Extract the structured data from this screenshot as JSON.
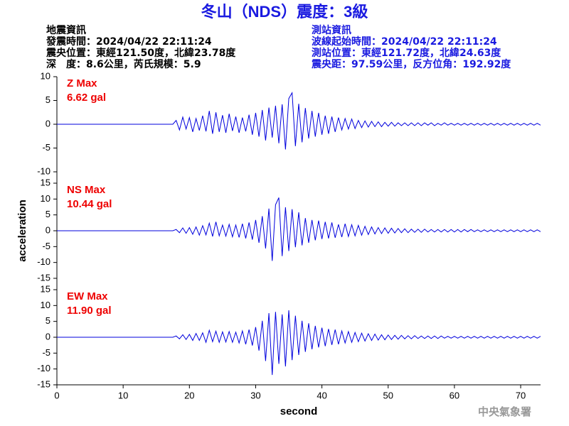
{
  "header": {
    "title": "冬山（NDS）震度：3級",
    "left_info": [
      "地震資訊",
      "發震時間：2024/04/22 22:11:24",
      "震央位置：東經121.50度，北緯23.78度",
      "深　度：8.6公里，芮氏規模：5.9"
    ],
    "right_info": [
      "測站資訊",
      "波線起始時間：2024/04/22 22:11:24",
      "測站位置：東經121.72度，北緯24.63度",
      "震央距：97.59公里，反方位角：192.92度"
    ]
  },
  "footer": {
    "watermark": "中央氣象署"
  },
  "chart_data": [
    {
      "type": "line",
      "annotation": "Z Max",
      "max_label": "6.62 gal",
      "color": "#0000dd",
      "annotation_color": "#ee0000",
      "xlim": [
        0,
        73
      ],
      "ylim": [
        -10,
        10
      ],
      "yticks": [
        -10,
        -5,
        0,
        5,
        10
      ],
      "x": [
        0,
        17.5,
        18,
        18.5,
        19,
        19.5,
        20,
        20.5,
        21,
        21.5,
        22,
        22.5,
        23,
        23.5,
        24,
        24.5,
        25,
        25.5,
        26,
        26.5,
        27,
        27.5,
        28,
        28.5,
        29,
        29.5,
        30,
        30.5,
        31,
        31.5,
        32,
        32.5,
        33,
        33.5,
        34,
        34.5,
        35,
        35.5,
        36,
        36.5,
        37,
        37.5,
        38,
        38.5,
        39,
        39.5,
        40,
        40.5,
        41,
        41.5,
        42,
        42.5,
        43,
        43.5,
        44,
        44.5,
        45,
        45.5,
        46,
        46.5,
        47,
        47.5,
        48,
        48.5,
        49,
        49.5,
        50,
        50.5,
        51,
        51.5,
        52,
        52.5,
        53,
        53.5,
        54,
        54.5,
        55,
        55.5,
        56,
        56.5,
        57,
        57.5,
        58,
        58.5,
        59,
        59.5,
        60,
        60.5,
        61,
        61.5,
        62,
        62.5,
        63,
        63.5,
        64,
        64.5,
        65,
        65.5,
        66,
        66.5,
        67,
        67.5,
        68,
        68.5,
        69,
        69.5,
        70,
        70.5,
        71,
        71.5,
        72,
        72.5,
        73
      ],
      "values": [
        0,
        0,
        0.8,
        -1.2,
        1.5,
        -1.0,
        1.4,
        -1.6,
        1.2,
        -1.3,
        1.8,
        -1.5,
        2.8,
        -2.0,
        2.5,
        -1.6,
        1.9,
        -1.8,
        2.2,
        -1.4,
        1.6,
        -1.8,
        1.4,
        -1.5,
        2.0,
        -2.2,
        2.4,
        -2.6,
        3.0,
        -3.4,
        3.5,
        -2.8,
        3.9,
        -4.0,
        4.2,
        -5.3,
        5.4,
        6.62,
        -4.6,
        4.3,
        -3.8,
        3.4,
        -3.0,
        2.8,
        -2.6,
        2.4,
        -2.2,
        1.8,
        -2.0,
        1.6,
        -1.6,
        1.4,
        -1.2,
        1.2,
        -1.0,
        1.1,
        -0.9,
        0.8,
        -0.7,
        0.7,
        -0.6,
        0.6,
        -0.5,
        0.5,
        -0.5,
        0.4,
        -0.4,
        0.4,
        -0.4,
        0.3,
        -0.3,
        0.3,
        -0.3,
        0.3,
        -0.3,
        0.3,
        -0.3,
        0.3,
        -0.2,
        0.3,
        -0.3,
        0.2,
        -0.2,
        0.3,
        -0.2,
        0.2,
        -0.2,
        0.2,
        -0.2,
        0.2,
        -0.2,
        0.2,
        -0.2,
        0.2,
        -0.2,
        0.2,
        -0.2,
        0.2,
        -0.2,
        0.2,
        -0.2,
        0.2,
        -0.2,
        0.2,
        -0.2,
        0.2,
        -0.2,
        0.2,
        -0.2,
        0.2,
        -0.2,
        0.2,
        -0.2
      ]
    },
    {
      "type": "line",
      "annotation": "NS Max",
      "max_label": "10.44 gal",
      "color": "#0000dd",
      "annotation_color": "#ee0000",
      "ylabel": "acceleration",
      "xlim": [
        0,
        73
      ],
      "ylim": [
        -15,
        15
      ],
      "yticks": [
        -15,
        -10,
        -5,
        0,
        5,
        10,
        15
      ],
      "x": [
        0,
        17.5,
        18,
        18.5,
        19,
        19.5,
        20,
        20.5,
        21,
        21.5,
        22,
        22.5,
        23,
        23.5,
        24,
        24.5,
        25,
        25.5,
        26,
        26.5,
        27,
        27.5,
        28,
        28.5,
        29,
        29.5,
        30,
        30.5,
        31,
        31.5,
        32,
        32.5,
        33,
        33.5,
        34,
        34.5,
        35,
        35.5,
        36,
        36.5,
        37,
        37.5,
        38,
        38.5,
        39,
        39.5,
        40,
        40.5,
        41,
        41.5,
        42,
        42.5,
        43,
        43.5,
        44,
        44.5,
        45,
        45.5,
        46,
        46.5,
        47,
        47.5,
        48,
        48.5,
        49,
        49.5,
        50,
        50.5,
        51,
        51.5,
        52,
        52.5,
        53,
        53.5,
        54,
        54.5,
        55,
        55.5,
        56,
        56.5,
        57,
        57.5,
        58,
        58.5,
        59,
        59.5,
        60,
        60.5,
        61,
        61.5,
        62,
        62.5,
        63,
        63.5,
        64,
        64.5,
        65,
        65.5,
        66,
        66.5,
        67,
        67.5,
        68,
        68.5,
        69,
        69.5,
        70,
        70.5,
        71,
        71.5,
        72,
        72.5,
        73
      ],
      "values": [
        0,
        0,
        0.4,
        -0.6,
        0.9,
        -0.8,
        1.0,
        -1.1,
        1.2,
        -1.4,
        1.6,
        -1.3,
        2.4,
        -1.8,
        2.8,
        -1.6,
        1.8,
        -1.7,
        2.0,
        -1.9,
        1.8,
        -2.1,
        2.2,
        -2.4,
        2.6,
        -2.8,
        3.4,
        -3.8,
        4.6,
        -5.6,
        7.0,
        -9.5,
        8.2,
        10.44,
        -8.0,
        7.4,
        -6.4,
        6.8,
        -5.2,
        5.8,
        -4.6,
        4.0,
        -3.8,
        3.4,
        -3.0,
        3.2,
        -2.6,
        2.8,
        -2.4,
        2.6,
        -2.2,
        2.0,
        -2.0,
        2.2,
        -1.8,
        1.9,
        -1.6,
        1.7,
        -1.4,
        1.4,
        -1.2,
        1.2,
        -1.0,
        1.0,
        -0.9,
        0.9,
        -0.8,
        0.8,
        -0.7,
        0.7,
        -0.6,
        0.6,
        -0.6,
        0.5,
        -0.5,
        0.5,
        -0.5,
        0.5,
        -0.4,
        0.4,
        -0.4,
        0.4,
        -0.4,
        0.4,
        -0.4,
        0.4,
        -0.4,
        0.4,
        -0.4,
        0.4,
        -0.3,
        0.4,
        -0.3,
        0.3,
        -0.3,
        0.3,
        -0.3,
        0.3,
        -0.3,
        0.3,
        -0.3,
        0.3,
        -0.3,
        0.3,
        -0.3,
        0.3,
        -0.3,
        0.3,
        -0.3,
        0.3,
        -0.3,
        0.3,
        -0.3
      ]
    },
    {
      "type": "line",
      "annotation": "EW Max",
      "max_label": "11.90 gal",
      "color": "#0000dd",
      "annotation_color": "#ee0000",
      "xlabel": "second",
      "xlim": [
        0,
        73
      ],
      "ylim": [
        -15,
        15
      ],
      "yticks": [
        -15,
        -10,
        -5,
        0,
        5,
        10,
        15
      ],
      "xticks": [
        0,
        10,
        20,
        30,
        40,
        50,
        60,
        70
      ],
      "x": [
        0,
        17.5,
        18,
        18.5,
        19,
        19.5,
        20,
        20.5,
        21,
        21.5,
        22,
        22.5,
        23,
        23.5,
        24,
        24.5,
        25,
        25.5,
        26,
        26.5,
        27,
        27.5,
        28,
        28.5,
        29,
        29.5,
        30,
        30.5,
        31,
        31.5,
        32,
        32.5,
        33,
        33.5,
        34,
        34.5,
        35,
        35.5,
        36,
        36.5,
        37,
        37.5,
        38,
        38.5,
        39,
        39.5,
        40,
        40.5,
        41,
        41.5,
        42,
        42.5,
        43,
        43.5,
        44,
        44.5,
        45,
        45.5,
        46,
        46.5,
        47,
        47.5,
        48,
        48.5,
        49,
        49.5,
        50,
        50.5,
        51,
        51.5,
        52,
        52.5,
        53,
        53.5,
        54,
        54.5,
        55,
        55.5,
        56,
        56.5,
        57,
        57.5,
        58,
        58.5,
        59,
        59.5,
        60,
        60.5,
        61,
        61.5,
        62,
        62.5,
        63,
        63.5,
        64,
        64.5,
        65,
        65.5,
        66,
        66.5,
        67,
        67.5,
        68,
        68.5,
        69,
        69.5,
        70,
        70.5,
        71,
        71.5,
        72,
        72.5,
        73
      ],
      "values": [
        0,
        0,
        0.4,
        -0.5,
        0.8,
        -0.7,
        0.9,
        -1.0,
        1.2,
        -1.0,
        1.4,
        -1.6,
        2.2,
        -1.4,
        1.9,
        -1.6,
        1.7,
        -1.5,
        1.8,
        -1.6,
        1.6,
        -1.8,
        2.0,
        -2.2,
        2.4,
        -2.6,
        3.2,
        -4.2,
        5.2,
        -7.5,
        7.6,
        -11.9,
        8.0,
        -8.4,
        7.2,
        -9.2,
        8.5,
        -7.2,
        6.8,
        -5.6,
        5.2,
        -4.6,
        4.4,
        -3.8,
        3.6,
        -3.2,
        3.0,
        -2.8,
        2.6,
        -2.4,
        2.4,
        -2.2,
        2.0,
        -1.8,
        1.8,
        -1.6,
        1.5,
        -1.4,
        1.3,
        -1.2,
        1.1,
        -1.0,
        1.0,
        -0.9,
        0.8,
        -0.8,
        0.7,
        -0.7,
        0.6,
        -0.6,
        0.6,
        -0.5,
        0.5,
        -0.5,
        0.5,
        -0.4,
        0.4,
        -0.4,
        0.4,
        -0.4,
        0.4,
        -0.4,
        0.4,
        -0.3,
        0.3,
        -0.3,
        0.3,
        -0.3,
        0.3,
        -0.3,
        0.3,
        -0.3,
        0.3,
        -0.3,
        0.3,
        -0.3,
        0.3,
        -0.3,
        0.3,
        -0.3,
        0.3,
        -0.3,
        0.3,
        -0.3,
        0.3,
        -0.3,
        0.3,
        -0.3,
        0.3,
        -0.3,
        0.3,
        -0.3,
        0.3
      ]
    }
  ]
}
